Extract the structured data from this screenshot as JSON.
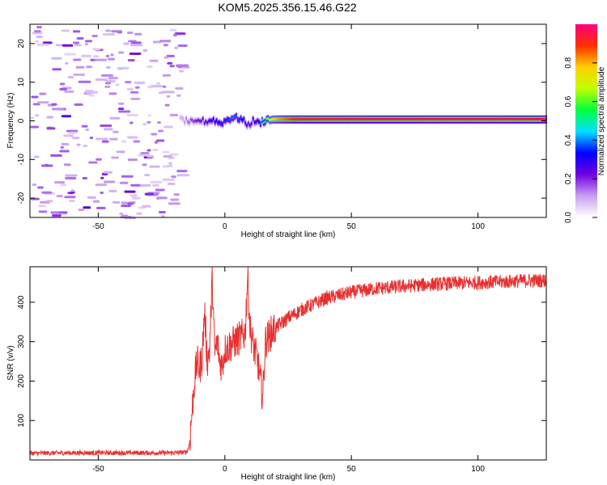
{
  "title": "KOM5.2025.356.15.46.G22",
  "chart_data": [
    {
      "type": "heatmap",
      "xlabel": "Height of straight line (km)",
      "ylabel": "Frequency (Hz)",
      "xlim": [
        -77,
        127
      ],
      "ylim": [
        -25,
        25
      ],
      "xticks": [
        -50,
        0,
        50,
        100
      ],
      "yticks": [
        -20,
        -10,
        0,
        10,
        20
      ],
      "grid": false,
      "colorbar": {
        "label": "Normalized spectral amplitude",
        "range": [
          0,
          1
        ],
        "ticks": [
          0.0,
          0.2,
          0.4,
          0.6,
          0.8
        ],
        "tick_labels": [
          "0.0",
          "0.2",
          "0.4",
          "0.6",
          "0.8"
        ],
        "colormap": [
          "#ffffff",
          "#c8a0f0",
          "#7000e0",
          "#0000ff",
          "#00e0ff",
          "#00ff40",
          "#c0ff00",
          "#ffd000",
          "#ff3000",
          "#ff0080"
        ]
      },
      "noise_region": {
        "x_range": [
          -77,
          -18
        ],
        "amplitude": 0.12
      },
      "trace": {
        "x": [
          -18,
          -15,
          -12,
          -10,
          -8,
          -5,
          -2,
          0,
          3,
          6,
          9,
          11,
          13,
          16,
          20,
          30,
          60,
          90,
          120,
          127
        ],
        "frequency": [
          0.5,
          0,
          -0.5,
          0.3,
          -0.2,
          0.4,
          -0.6,
          0.2,
          1.0,
          0.6,
          -1.0,
          0.2,
          -0.5,
          0.4,
          0.5,
          0.5,
          0.5,
          0.5,
          0.5,
          0.5
        ],
        "amplitude": [
          0.08,
          0.15,
          0.2,
          0.22,
          0.25,
          0.3,
          0.35,
          0.35,
          0.4,
          0.35,
          0.25,
          0.3,
          0.3,
          0.6,
          0.8,
          0.95,
          0.98,
          0.98,
          0.98,
          0.98
        ]
      }
    },
    {
      "type": "line",
      "xlabel": "Height of straight line (km)",
      "ylabel": "SNR (v/v)",
      "xlim": [
        -77,
        127
      ],
      "ylim": [
        0,
        490
      ],
      "xticks": [
        -50,
        0,
        50,
        100
      ],
      "yticks": [
        100,
        200,
        300,
        400
      ],
      "grid": false,
      "color": "#e83030",
      "x": [
        -77,
        -60,
        -40,
        -20,
        -15,
        -14,
        -13,
        -12,
        -11,
        -10,
        -9,
        -8,
        -7,
        -6,
        -5,
        -4,
        -3,
        -2,
        -1,
        0,
        2,
        4,
        6,
        8,
        9,
        10,
        11,
        12,
        13,
        14,
        15,
        16,
        18,
        20,
        25,
        30,
        35,
        40,
        50,
        60,
        70,
        80,
        90,
        100,
        110,
        120,
        127
      ],
      "y": [
        17,
        18,
        18,
        18,
        20,
        40,
        120,
        200,
        250,
        230,
        260,
        380,
        250,
        280,
        460,
        270,
        300,
        250,
        240,
        280,
        290,
        300,
        310,
        320,
        470,
        330,
        300,
        270,
        250,
        200,
        160,
        300,
        320,
        335,
        360,
        380,
        395,
        410,
        425,
        435,
        440,
        445,
        448,
        450,
        452,
        455,
        455
      ]
    }
  ]
}
